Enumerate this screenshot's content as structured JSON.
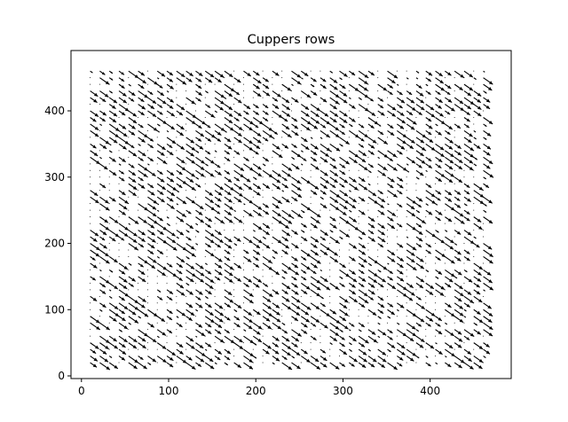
{
  "chart_data": {
    "type": "quiver",
    "title": "Cuppers rows",
    "xlabel": "",
    "ylabel": "",
    "xlim": [
      -12,
      493
    ],
    "ylim": [
      -4,
      491
    ],
    "x_ticks": [
      0,
      100,
      200,
      300,
      400
    ],
    "y_ticks": [
      0,
      100,
      200,
      300,
      400
    ],
    "x_tick_labels": [
      "0",
      "100",
      "200",
      "300",
      "400"
    ],
    "y_tick_labels": [
      "0",
      "100",
      "200",
      "300",
      "400"
    ],
    "grid": false,
    "legend": "none",
    "field": {
      "x_start": 10,
      "x_step": 11,
      "x_count": 42,
      "y_start": 20,
      "y_step": 10,
      "y_count": 45,
      "arrow_angle_deg": -35,
      "arrow_length_range": [
        0,
        14
      ],
      "note_magnitude_pattern": "pseudo-random per cell, many near-zero dots, dense diagonal arrows pointing down-right"
    },
    "colors": {
      "arrow": "#000000",
      "axes": "#000000",
      "background": "#ffffff"
    }
  }
}
